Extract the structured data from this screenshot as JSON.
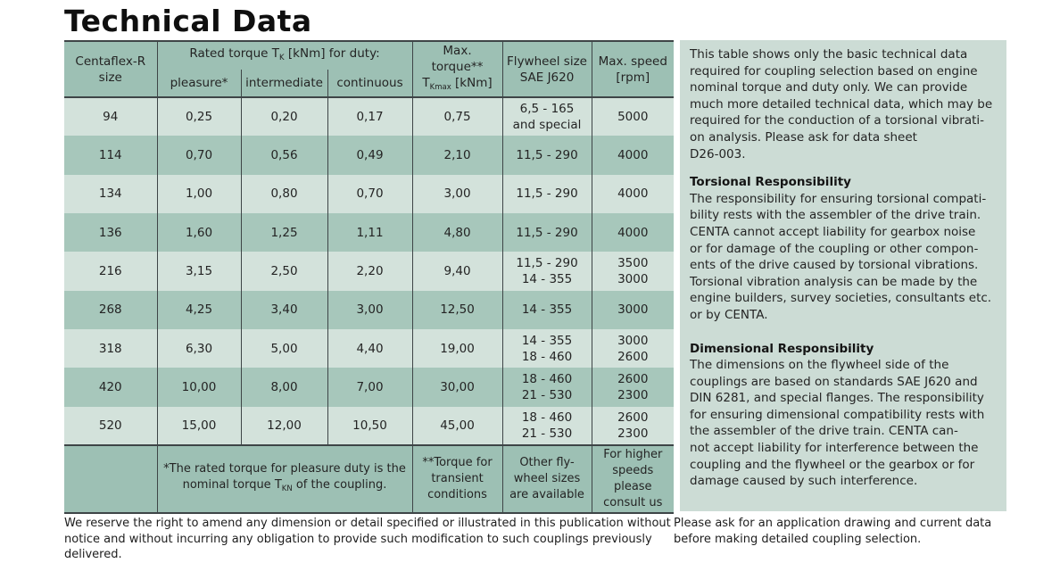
{
  "title": "Technical Data",
  "theme": {
    "header_bg": "#9dc0b4",
    "row_light": "#d3e2db",
    "row_dark": "#a7c7bb",
    "panel_bg": "#ccdcd5",
    "border_dark": "#3e4547"
  },
  "table": {
    "header": {
      "size_col": "Centaflex-R\nsize",
      "rated_group_prefix": "Rated torque T",
      "rated_group_sub": "K",
      "rated_group_suffix": " [kNm] for duty:",
      "sub_pleasure": "pleasure*",
      "sub_intermediate": "intermediate",
      "sub_continuous": "continuous",
      "max_torque_line1": "Max. torque**",
      "max_torque_t": "T",
      "max_torque_sub": "Kmax",
      "max_torque_unit": " [kNm]",
      "flywheel_col": "Flywheel size\nSAE J620",
      "speed_col": "Max. speed\n[rpm]"
    },
    "rows": [
      {
        "size": "94",
        "pleasure": "0,25",
        "intermediate": "0,20",
        "continuous": "0,17",
        "max_torque": "0,75",
        "flywheel": "6,5 - 165\nand special",
        "speed": "5000"
      },
      {
        "size": "114",
        "pleasure": "0,70",
        "intermediate": "0,56",
        "continuous": "0,49",
        "max_torque": "2,10",
        "flywheel": "11,5 - 290",
        "speed": "4000"
      },
      {
        "size": "134",
        "pleasure": "1,00",
        "intermediate": "0,80",
        "continuous": "0,70",
        "max_torque": "3,00",
        "flywheel": "11,5 - 290",
        "speed": "4000"
      },
      {
        "size": "136",
        "pleasure": "1,60",
        "intermediate": "1,25",
        "continuous": "1,11",
        "max_torque": "4,80",
        "flywheel": "11,5 - 290",
        "speed": "4000"
      },
      {
        "size": "216",
        "pleasure": "3,15",
        "intermediate": "2,50",
        "continuous": "2,20",
        "max_torque": "9,40",
        "flywheel": "11,5 - 290\n14 - 355",
        "speed": "3500\n3000"
      },
      {
        "size": "268",
        "pleasure": "4,25",
        "intermediate": "3,40",
        "continuous": "3,00",
        "max_torque": "12,50",
        "flywheel": "14 - 355",
        "speed": "3000"
      },
      {
        "size": "318",
        "pleasure": "6,30",
        "intermediate": "5,00",
        "continuous": "4,40",
        "max_torque": "19,00",
        "flywheel": "14 - 355\n18 - 460",
        "speed": "3000\n2600"
      },
      {
        "size": "420",
        "pleasure": "10,00",
        "intermediate": "8,00",
        "continuous": "7,00",
        "max_torque": "30,00",
        "flywheel": "18 - 460\n21 - 530",
        "speed": "2600\n2300"
      },
      {
        "size": "520",
        "pleasure": "15,00",
        "intermediate": "12,00",
        "continuous": "10,50",
        "max_torque": "45,00",
        "flywheel": "18 - 460\n21 - 530",
        "speed": "2600\n2300"
      }
    ],
    "footnotes": {
      "rated_prefix": "*The rated torque for pleasure duty is the nominal torque T",
      "rated_sub": "KN",
      "rated_suffix": " of the coupling.",
      "torque": "**Torque for\ntransient\nconditions",
      "flywheel": "Other fly-\nwheel sizes\nare available",
      "speed": "For higher\nspeeds please\nconsult us"
    }
  },
  "sidebar": {
    "intro": "This table shows only the basic technical data\nrequired for coupling selection based on engine\nnominal torque and duty only. We can provide\nmuch more detailed technical data, which may be\nrequired for the conduction of a torsional vibrati-\non analysis. Please ask for data sheet\nD26-003.",
    "sections": [
      {
        "heading": "Torsional Responsibility",
        "body": "The responsibility for ensuring torsional compati-\nbility rests with the assembler of the drive train.\nCENTA cannot accept liability for gearbox noise\nor for damage of the coupling or other compon-\nents of the drive caused by torsional vibrations.\nTorsional vibration analysis can be made by the\nengine builders, survey societies, consultants etc.\nor by CENTA."
      },
      {
        "heading": "Dimensional Responsibility",
        "body": "The dimensions on the flywheel side of the\ncouplings are based on standards SAE J620 and\nDIN 6281, and special flanges. The responsibility\nfor ensuring dimensional compatibility rests with\nthe assembler of the drive train. CENTA can-\nnot accept liability for interference between the\ncoupling and the flywheel or the gearbox or for\ndamage caused by such interference."
      }
    ]
  },
  "footer": {
    "left_note": "We reserve the right to amend any dimension or detail specified or illustrated in this publication without\nnotice and without incurring any obligation to provide such modification to such couplings previously\ndelivered.",
    "right_note": "Please ask for an application drawing and current data\nbefore making detailed coupling selection."
  }
}
